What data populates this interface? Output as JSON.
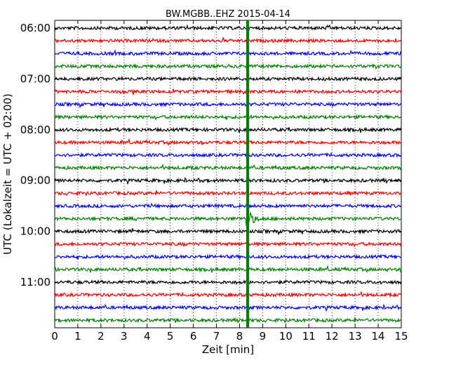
{
  "chart_data": {
    "type": "line",
    "title": "BW.MGBB..EHZ 2015-04-14",
    "xlabel": "Zeit  [min]",
    "ylabel": "UTC (Lokalzeit = UTC + 02:00)",
    "xlim": [
      0,
      15
    ],
    "x_ticks": [
      "0",
      "1",
      "2",
      "3",
      "4",
      "5",
      "6",
      "7",
      "8",
      "9",
      "10",
      "11",
      "12",
      "13",
      "14",
      "15"
    ],
    "y_tick_labels": [
      "06:00",
      "07:00",
      "08:00",
      "09:00",
      "10:00",
      "11:00"
    ],
    "grid": "vertical dotted",
    "trace_interval_minutes": 15,
    "trace_start_times": [
      "06:00",
      "06:15",
      "06:30",
      "06:45",
      "07:00",
      "07:15",
      "07:30",
      "07:45",
      "08:00",
      "08:15",
      "08:30",
      "08:45",
      "09:00",
      "09:15",
      "09:30",
      "09:45",
      "10:00",
      "10:15",
      "10:30",
      "10:45",
      "11:00",
      "11:15",
      "11:30",
      "11:45"
    ],
    "trace_colors": [
      "#000000",
      "#ff0000",
      "#0000ff",
      "#008000"
    ],
    "event_marker_minute": 8.35,
    "event_marker_color": "#008000",
    "event_trace_start": "09:45",
    "event_trace_peak_minute": 8.4
  }
}
